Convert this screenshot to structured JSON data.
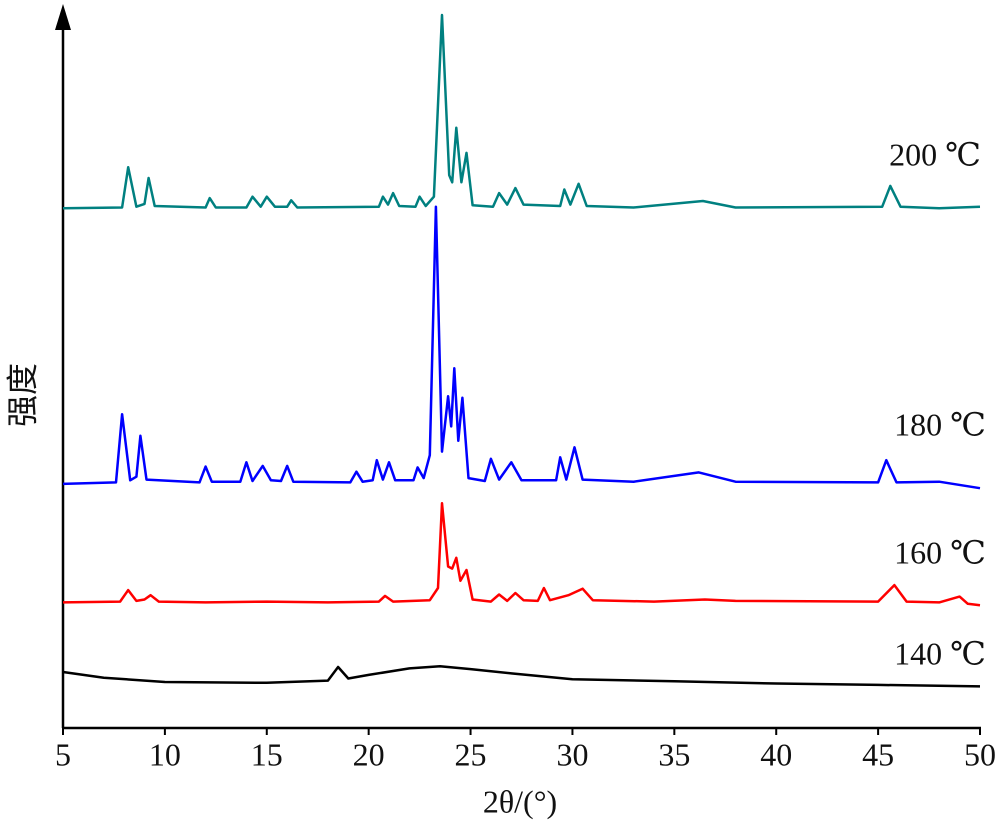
{
  "chart_data": {
    "type": "line",
    "x_label": "2θ/(°)",
    "y_label": "强度",
    "xlim": [
      5,
      50
    ],
    "xticks": [
      5,
      10,
      15,
      20,
      25,
      30,
      35,
      40,
      45,
      50
    ],
    "ylim": [
      0,
      100
    ],
    "series": [
      {
        "name": "140 ℃",
        "color": "#000000",
        "x": [
          5,
          7,
          10,
          15,
          18,
          18.5,
          19,
          20,
          22,
          23.5,
          25,
          27,
          30,
          35,
          40,
          45,
          50
        ],
        "values": [
          7.8,
          7.0,
          6.4,
          6.3,
          6.6,
          8.5,
          6.9,
          7.4,
          8.3,
          8.6,
          8.2,
          7.6,
          6.8,
          6.5,
          6.2,
          6.0,
          5.8
        ]
      },
      {
        "name": "160 ℃",
        "color": "#ff0000",
        "x": [
          5,
          7.8,
          8.2,
          8.6,
          9.0,
          9.3,
          9.7,
          12,
          15,
          18,
          20.5,
          20.8,
          21.2,
          23,
          23.4,
          23.6,
          23.9,
          24.1,
          24.3,
          24.5,
          24.8,
          25.1,
          26,
          26.4,
          26.8,
          27.2,
          27.6,
          28.3,
          28.6,
          28.9,
          29.8,
          30.5,
          31,
          34,
          36.5,
          38,
          45,
          45.8,
          46.4,
          48,
          49,
          49.4,
          50
        ],
        "values": [
          17.5,
          17.6,
          19.2,
          17.7,
          17.9,
          18.5,
          17.6,
          17.5,
          17.6,
          17.5,
          17.6,
          18.4,
          17.6,
          17.8,
          19.5,
          31.3,
          22.5,
          22.2,
          23.7,
          20.5,
          22.0,
          17.9,
          17.6,
          18.6,
          17.7,
          18.8,
          17.8,
          17.7,
          19.5,
          17.8,
          18.5,
          19.4,
          17.8,
          17.6,
          17.9,
          17.7,
          17.6,
          19.9,
          17.6,
          17.5,
          18.3,
          17.3,
          17.1
        ]
      },
      {
        "name": "180 ℃",
        "color": "#0000ff",
        "x": [
          5,
          7.6,
          7.9,
          8.3,
          8.6,
          8.8,
          9.1,
          11.7,
          12,
          12.3,
          13.7,
          14,
          14.3,
          14.8,
          15.2,
          15.7,
          16,
          16.3,
          19.1,
          19.4,
          19.7,
          20.2,
          20.4,
          20.7,
          21,
          21.3,
          22.2,
          22.4,
          22.7,
          23.0,
          23.3,
          23.6,
          23.9,
          24.05,
          24.2,
          24.4,
          24.6,
          24.9,
          25.7,
          26,
          26.4,
          27,
          27.5,
          29.2,
          29.4,
          29.7,
          30.1,
          30.5,
          33,
          36.2,
          38,
          45,
          45.4,
          45.9,
          48,
          50
        ],
        "values": [
          34.0,
          34.2,
          43.7,
          34.5,
          35.0,
          40.7,
          34.6,
          34.2,
          36.4,
          34.3,
          34.3,
          37.0,
          34.4,
          36.5,
          34.5,
          34.4,
          36.5,
          34.3,
          34.2,
          35.7,
          34.3,
          34.5,
          37.3,
          34.6,
          37.0,
          34.5,
          34.5,
          36.3,
          34.8,
          38.0,
          72.6,
          38.5,
          46.2,
          42.0,
          50.1,
          40.0,
          46.0,
          34.8,
          34.4,
          37.5,
          34.6,
          37.0,
          34.5,
          34.5,
          37.7,
          34.6,
          39.1,
          34.6,
          34.3,
          35.6,
          34.3,
          34.2,
          37.3,
          34.2,
          34.3,
          33.4
        ]
      },
      {
        "name": "200 ℃",
        "color": "#008080",
        "x": [
          5,
          7.9,
          8.2,
          8.6,
          9.0,
          9.2,
          9.5,
          12,
          12.2,
          12.5,
          14,
          14.3,
          14.7,
          15,
          15.4,
          16,
          16.2,
          16.5,
          20.5,
          20.7,
          20.95,
          21.2,
          21.5,
          22.3,
          22.5,
          22.8,
          23.2,
          23.6,
          23.95,
          24.1,
          24.3,
          24.55,
          24.8,
          25.1,
          26.1,
          26.4,
          26.8,
          27.2,
          27.6,
          29.4,
          29.6,
          29.9,
          30.3,
          30.7,
          33,
          36.4,
          38,
          45.2,
          45.6,
          46.1,
          48,
          50
        ],
        "values": [
          72.4,
          72.5,
          78.1,
          72.6,
          73.0,
          76.6,
          72.7,
          72.5,
          73.8,
          72.5,
          72.5,
          74.0,
          72.6,
          74.0,
          72.6,
          72.6,
          73.5,
          72.5,
          72.6,
          74.0,
          72.9,
          74.5,
          72.7,
          72.6,
          74.0,
          72.7,
          74.0,
          99.3,
          77.0,
          76.0,
          83.6,
          76.0,
          80.1,
          72.8,
          72.6,
          74.5,
          72.9,
          75.2,
          72.9,
          72.7,
          75.0,
          72.9,
          75.8,
          72.7,
          72.5,
          73.4,
          72.5,
          72.6,
          75.5,
          72.6,
          72.4,
          72.6
        ]
      }
    ]
  }
}
